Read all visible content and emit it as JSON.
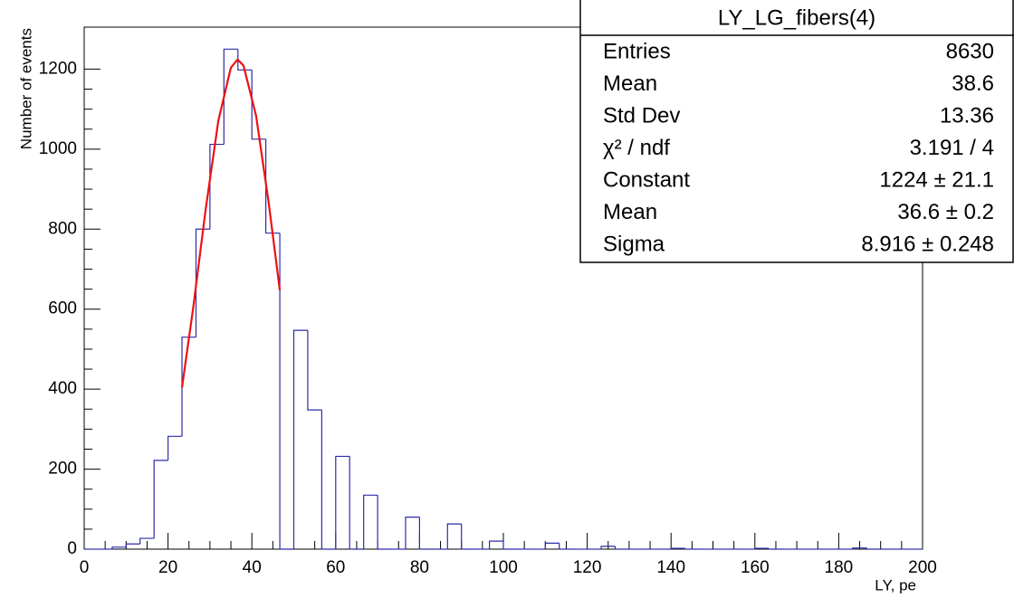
{
  "chart_data": {
    "type": "histogram",
    "xlabel": "LY, pe",
    "ylabel": "Number of events",
    "bins": [
      0,
      3.33,
      6.67,
      10,
      13.33,
      16.67,
      20,
      23.33,
      26.67,
      30,
      33.33,
      36.67,
      40,
      43.33,
      46.67,
      50,
      53.33,
      56.67,
      60,
      63.33,
      66.67,
      70,
      73.33,
      76.67,
      80,
      83.33,
      86.67,
      90,
      93.33,
      96.67,
      100,
      103.33,
      106.67,
      110,
      113.33,
      116.67,
      120,
      123.33,
      126.67,
      130,
      133.33,
      136.67,
      140,
      143.33,
      146.67,
      150,
      153.33,
      156.67,
      160,
      163.33,
      166.67,
      170,
      173.33,
      176.67,
      180,
      183.33,
      186.67,
      190,
      193.33,
      196.67,
      200
    ],
    "values": [
      0,
      0,
      5,
      13,
      27,
      222,
      282,
      530,
      800,
      1012,
      1250,
      1198,
      1025,
      790,
      0,
      547,
      348,
      0,
      232,
      0,
      135,
      0,
      0,
      80,
      0,
      0,
      63,
      0,
      0,
      20,
      0,
      0,
      0,
      15,
      0,
      0,
      0,
      7,
      0,
      0,
      0,
      0,
      2,
      0,
      0,
      0,
      0,
      0,
      2,
      0,
      0,
      0,
      0,
      0,
      0,
      3,
      0,
      0,
      0,
      0
    ],
    "color": "#2c2ca8",
    "fit": {
      "color": "#ee1111",
      "x": [
        23.33,
        26,
        29,
        32,
        35,
        36.6,
        38,
        41,
        44,
        46.67
      ],
      "values": [
        404,
        603,
        851,
        1071,
        1204,
        1224,
        1209,
        1084,
        867,
        647
      ]
    },
    "xlim": [
      0,
      200
    ],
    "xticks": [
      0,
      20,
      40,
      60,
      80,
      100,
      120,
      140,
      160,
      180,
      200
    ],
    "ylim": [
      0,
      1305
    ],
    "yticks": [
      0,
      200,
      400,
      600,
      800,
      1000,
      1200
    ],
    "stats": {
      "title": "LY_LG_fibers(4)",
      "rows": [
        [
          "Entries",
          "8630"
        ],
        [
          "Mean",
          "38.6"
        ],
        [
          "Std Dev",
          "13.36"
        ],
        [
          "χ² / ndf",
          "3.191 / 4"
        ],
        [
          "Constant",
          "1224 ± 21.1"
        ],
        [
          "Mean",
          "36.6 ± 0.2"
        ],
        [
          "Sigma",
          "8.916 ± 0.248"
        ]
      ]
    }
  }
}
